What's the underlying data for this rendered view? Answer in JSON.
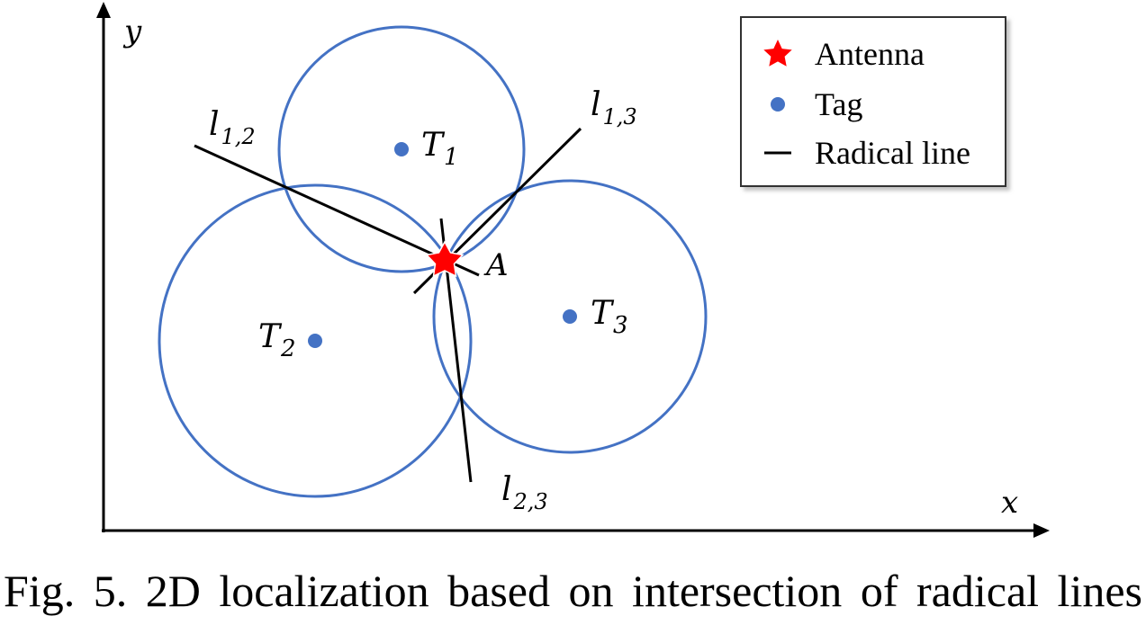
{
  "diagram": {
    "axes": {
      "x_label": "x",
      "y_label": "y"
    },
    "tags": [
      {
        "label": "T",
        "sub": "1"
      },
      {
        "label": "T",
        "sub": "2"
      },
      {
        "label": "T",
        "sub": "3"
      }
    ],
    "radical_lines": [
      {
        "label": "l",
        "sub": "1,2"
      },
      {
        "label": "l",
        "sub": "1,3"
      },
      {
        "label": "l",
        "sub": "2,3"
      }
    ],
    "antenna_label": "A",
    "legend": {
      "antenna": "Antenna",
      "tag": "Tag",
      "radical_line": "Radical line"
    },
    "colors": {
      "circle": "#4472C4",
      "tag": "#4472C4",
      "antenna": "#FF0000",
      "line": "#000000"
    }
  },
  "caption": "Fig. 5.  2D localization based on intersection of radical lines"
}
